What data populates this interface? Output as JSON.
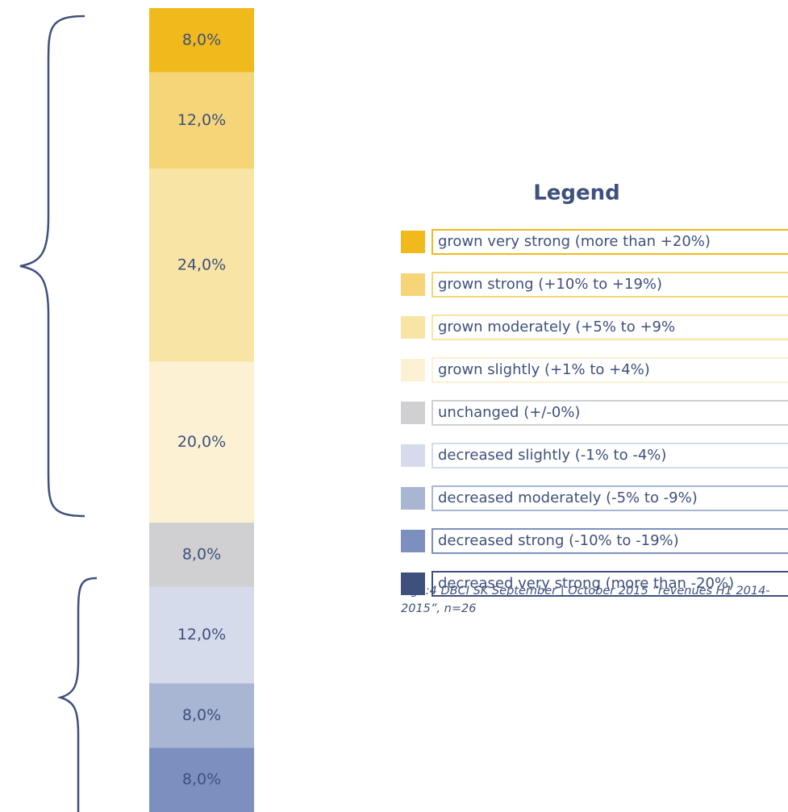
{
  "chart_data": {
    "type": "stacked-bar",
    "legend_title": "Legend",
    "ylim": [
      0,
      100
    ],
    "series": [
      {
        "name": "grown very strong (more than +20%)",
        "color": "#f0b91c",
        "values": [
          8
        ],
        "value_labels": [
          "8,0%"
        ]
      },
      {
        "name": "grown strong (+10% to +19%)",
        "color": "#f5d578",
        "values": [
          12
        ],
        "value_labels": [
          "12,0%"
        ]
      },
      {
        "name": "grown moderately (+5% to +9%",
        "color": "#f8e4a4",
        "values": [
          24
        ],
        "value_labels": [
          "24,0%"
        ]
      },
      {
        "name": "grown slightly (+1% to +4%)",
        "color": "#fcf1d2",
        "values": [
          20
        ],
        "value_labels": [
          "20,0%"
        ]
      },
      {
        "name": "unchanged (+/-0%)",
        "color": "#d0d0d2",
        "values": [
          8
        ],
        "value_labels": [
          "8,0%"
        ]
      },
      {
        "name": "decreased slightly (-1% to -4%)",
        "color": "#d5dbeb",
        "values": [
          12
        ],
        "value_labels": [
          "12,0%"
        ]
      },
      {
        "name": "decreased moderately (-5% to -9%)",
        "color": "#a8b5d3",
        "values": [
          8
        ],
        "value_labels": [
          "8,0%"
        ]
      },
      {
        "name": "decreased strong (-10% to -19%)",
        "color": "#7d8fbf",
        "values": [
          8
        ],
        "value_labels": [
          "8,0%"
        ]
      },
      {
        "name": "decreased very strong (more than -20%)",
        "color": "#3e507c",
        "values": [
          0
        ]
      }
    ],
    "caption": "Fig. :4 DBCI SK September | October 2015 “revenues H1 2014-2015”,  n=26"
  }
}
